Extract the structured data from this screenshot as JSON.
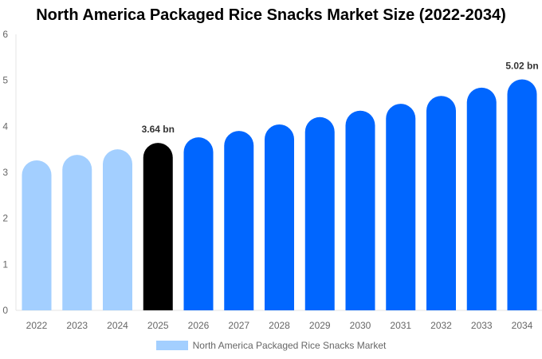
{
  "chart_data": {
    "type": "bar",
    "title": "North America Packaged Rice Snacks Market Size (2022-2034)",
    "categories": [
      "2022",
      "2023",
      "2024",
      "2025",
      "2026",
      "2027",
      "2028",
      "2029",
      "2030",
      "2031",
      "2032",
      "2033",
      "2034"
    ],
    "series": [
      {
        "name": "North America Packaged Rice Snacks Market",
        "values": [
          3.26,
          3.38,
          3.5,
          3.64,
          3.76,
          3.9,
          4.04,
          4.2,
          4.34,
          4.49,
          4.66,
          4.84,
          5.02
        ]
      }
    ],
    "bar_colors": [
      "#a3cfff",
      "#a3cfff",
      "#a3cfff",
      "#000000",
      "#0066ff",
      "#0066ff",
      "#0066ff",
      "#0066ff",
      "#0066ff",
      "#0066ff",
      "#0066ff",
      "#0066ff",
      "#0066ff"
    ],
    "data_labels": {
      "2025": "3.64 bn",
      "2034": "5.02 bn"
    },
    "yticks": [
      "0",
      "1",
      "2",
      "3",
      "4",
      "5",
      "6"
    ],
    "ylim": [
      0,
      6
    ],
    "xlabel": "",
    "ylabel": "",
    "legend_position": "bottom",
    "grid": false
  }
}
